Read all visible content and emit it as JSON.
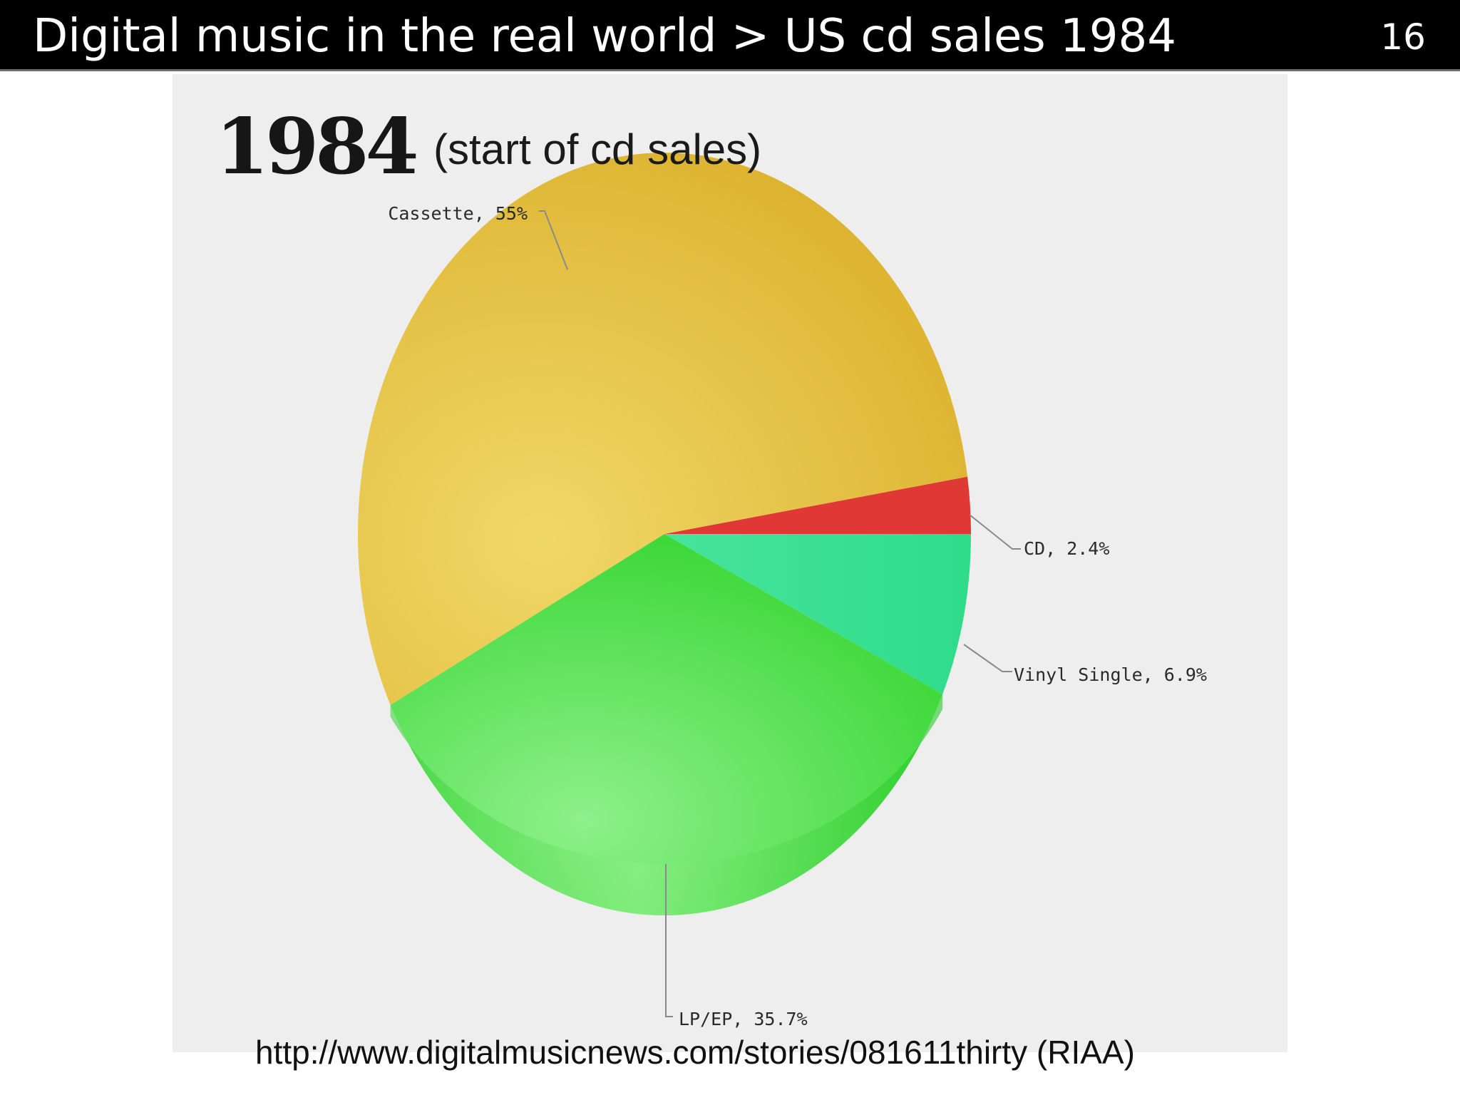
{
  "slide": {
    "title": "Digital music in the real world > US cd sales 1984",
    "number": "16"
  },
  "chart_data": {
    "type": "pie",
    "title": "1984",
    "subtitle": "(start of cd sales)",
    "slices": [
      {
        "label": "Cassette",
        "value": 55,
        "display": "Cassette, 55%",
        "color": "#e1bb35"
      },
      {
        "label": "CD",
        "value": 2.4,
        "display": "CD, 2.4%",
        "color": "#e03834"
      },
      {
        "label": "Vinyl Single",
        "value": 6.9,
        "display": "Vinyl Single, 6.9%",
        "color": "#38e08e"
      },
      {
        "label": "LP/EP",
        "value": 35.7,
        "display": "LP/EP, 35.7%",
        "color": "#4fd84c"
      }
    ],
    "legend": "none",
    "grid": false
  },
  "source": {
    "url": "http://www.digitalmusicnews.com/stories/081611thirty (RIAA)"
  },
  "colors": {
    "title_bar": "#000000",
    "panel_background": "#eeeeef"
  }
}
